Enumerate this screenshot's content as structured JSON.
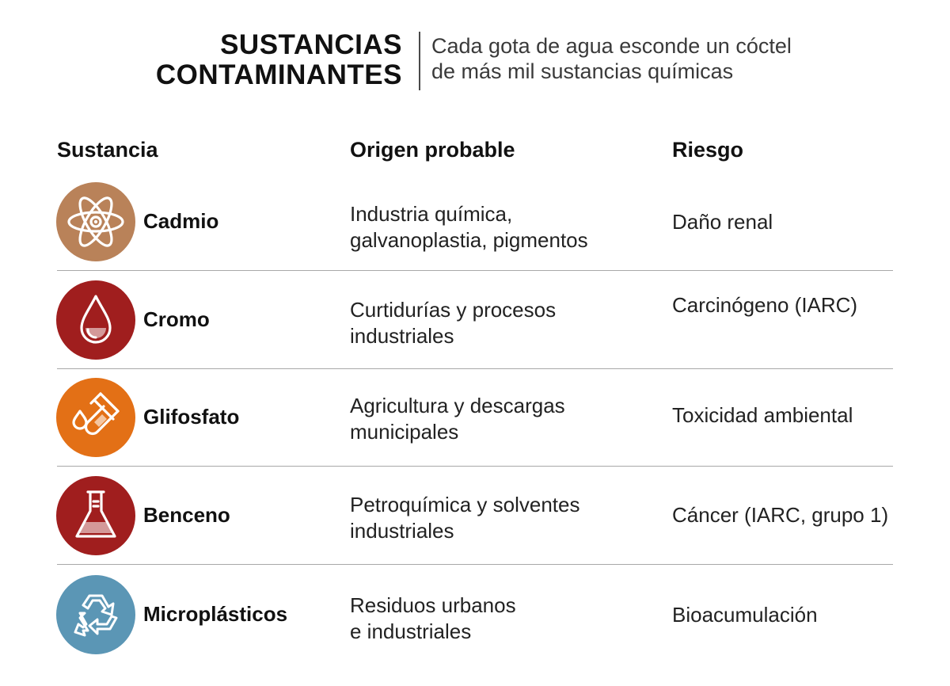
{
  "header": {
    "title_line1": "SUSTANCIAS",
    "title_line2": "CONTAMINANTES",
    "subtitle_line1": "Cada gota de agua esconde un cóctel",
    "subtitle_line2": "de más mil sustancias químicas"
  },
  "columns": {
    "substance": "Sustancia",
    "origin": "Origen probable",
    "risk": "Riesgo"
  },
  "rows": [
    {
      "name": "Cadmio",
      "icon": "atom-icon",
      "color": "#B98259",
      "origin_line1": "Industria química,",
      "origin_line2": "galvanoplastia, pigmentos",
      "risk": "Daño renal"
    },
    {
      "name": "Cromo",
      "icon": "water-drop-icon",
      "color": "#A01E1E",
      "origin_line1": "Curtidurías y procesos",
      "origin_line2": "industriales",
      "risk": "Carcinógeno (IARC)"
    },
    {
      "name": "Glifosfato",
      "icon": "test-tube-icon",
      "color": "#E37016",
      "origin_line1": "Agricultura y descargas",
      "origin_line2": "municipales",
      "risk": "Toxicidad ambiental"
    },
    {
      "name": "Benceno",
      "icon": "flask-icon",
      "color": "#A01E1E",
      "origin_line1": "Petroquímica y solventes",
      "origin_line2": "industriales",
      "risk": "Cáncer (IARC, grupo 1)"
    },
    {
      "name": "Microplásticos",
      "icon": "recycle-icon",
      "color": "#5B96B5",
      "origin_line1": "Residuos urbanos",
      "origin_line2": "e industriales",
      "risk": "Bioacumulación"
    }
  ]
}
